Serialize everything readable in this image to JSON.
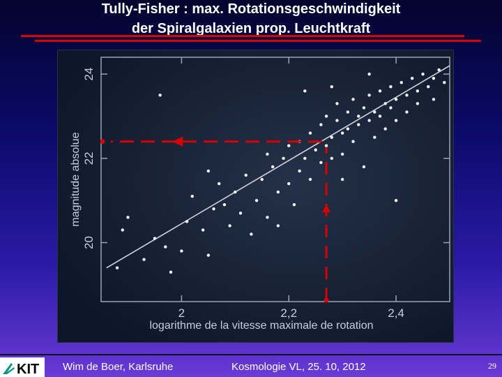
{
  "slide": {
    "title_line1": "Tully-Fisher : max. Rotationsgeschwindigkeit",
    "title_line2": "der Spiralgalaxien prop. Leuchtkraft",
    "footer_author": "Wim de Boer, Karlsruhe",
    "footer_course": "Kosmologie VL, 25. 10, 2012",
    "page_number": "29",
    "logo_text": "KIT",
    "accent_color": "#d60000"
  },
  "chart_data": {
    "type": "scatter",
    "title": "",
    "xlabel": "logarithme de la vitesse maximale de rotation",
    "ylabel": "magnitude absolue",
    "xlim": [
      1.85,
      2.5
    ],
    "ylim": [
      18.6,
      24.4
    ],
    "xticks": [
      "2",
      "2,2",
      "2,4"
    ],
    "yticks": [
      "20",
      "22",
      "24"
    ],
    "xtick_values": [
      2.0,
      2.2,
      2.4
    ],
    "ytick_values": [
      20,
      22,
      24
    ],
    "grid": false,
    "fit_line": {
      "x": [
        1.86,
        2.5
      ],
      "y": [
        19.4,
        24.2
      ]
    },
    "annotation": {
      "x": 2.27,
      "y": 22.4,
      "description": "red dashed arrows from x = 2.27 up to the fit line and left to y = 22.4"
    },
    "points": [
      {
        "x": 1.88,
        "y": 19.4
      },
      {
        "x": 1.89,
        "y": 20.3
      },
      {
        "x": 1.9,
        "y": 20.6
      },
      {
        "x": 1.93,
        "y": 19.6
      },
      {
        "x": 1.95,
        "y": 20.1
      },
      {
        "x": 1.97,
        "y": 19.9
      },
      {
        "x": 1.98,
        "y": 19.3
      },
      {
        "x": 2.0,
        "y": 19.8
      },
      {
        "x": 2.01,
        "y": 20.5
      },
      {
        "x": 2.02,
        "y": 21.1
      },
      {
        "x": 2.04,
        "y": 20.3
      },
      {
        "x": 2.05,
        "y": 19.7
      },
      {
        "x": 2.06,
        "y": 20.8
      },
      {
        "x": 2.07,
        "y": 21.4
      },
      {
        "x": 2.08,
        "y": 20.9
      },
      {
        "x": 2.09,
        "y": 20.4
      },
      {
        "x": 2.1,
        "y": 21.2
      },
      {
        "x": 2.11,
        "y": 20.7
      },
      {
        "x": 2.12,
        "y": 21.6
      },
      {
        "x": 2.13,
        "y": 20.2
      },
      {
        "x": 2.14,
        "y": 21.0
      },
      {
        "x": 2.15,
        "y": 21.5
      },
      {
        "x": 2.16,
        "y": 20.6
      },
      {
        "x": 2.16,
        "y": 22.1
      },
      {
        "x": 2.17,
        "y": 21.8
      },
      {
        "x": 2.18,
        "y": 21.2
      },
      {
        "x": 2.19,
        "y": 22.0
      },
      {
        "x": 2.2,
        "y": 21.4
      },
      {
        "x": 2.2,
        "y": 22.3
      },
      {
        "x": 2.21,
        "y": 20.9
      },
      {
        "x": 2.22,
        "y": 21.7
      },
      {
        "x": 2.22,
        "y": 22.4
      },
      {
        "x": 2.23,
        "y": 22.0
      },
      {
        "x": 2.24,
        "y": 21.5
      },
      {
        "x": 2.24,
        "y": 22.6
      },
      {
        "x": 2.25,
        "y": 22.2
      },
      {
        "x": 2.26,
        "y": 21.9
      },
      {
        "x": 2.26,
        "y": 22.8
      },
      {
        "x": 2.27,
        "y": 22.3
      },
      {
        "x": 2.27,
        "y": 23.0
      },
      {
        "x": 2.28,
        "y": 22.5
      },
      {
        "x": 2.28,
        "y": 22.0
      },
      {
        "x": 2.29,
        "y": 22.9
      },
      {
        "x": 2.29,
        "y": 23.3
      },
      {
        "x": 2.3,
        "y": 22.6
      },
      {
        "x": 2.3,
        "y": 22.1
      },
      {
        "x": 2.31,
        "y": 23.1
      },
      {
        "x": 2.31,
        "y": 22.7
      },
      {
        "x": 2.32,
        "y": 23.4
      },
      {
        "x": 2.32,
        "y": 22.4
      },
      {
        "x": 2.33,
        "y": 23.0
      },
      {
        "x": 2.33,
        "y": 22.8
      },
      {
        "x": 2.34,
        "y": 23.2
      },
      {
        "x": 2.34,
        "y": 21.8
      },
      {
        "x": 2.35,
        "y": 23.5
      },
      {
        "x": 2.35,
        "y": 22.9
      },
      {
        "x": 2.36,
        "y": 23.1
      },
      {
        "x": 2.36,
        "y": 22.5
      },
      {
        "x": 2.37,
        "y": 23.6
      },
      {
        "x": 2.37,
        "y": 23.0
      },
      {
        "x": 2.38,
        "y": 23.3
      },
      {
        "x": 2.38,
        "y": 22.7
      },
      {
        "x": 2.39,
        "y": 23.7
      },
      {
        "x": 2.39,
        "y": 23.2
      },
      {
        "x": 2.4,
        "y": 23.4
      },
      {
        "x": 2.4,
        "y": 22.9
      },
      {
        "x": 2.41,
        "y": 23.8
      },
      {
        "x": 2.42,
        "y": 23.5
      },
      {
        "x": 2.42,
        "y": 23.1
      },
      {
        "x": 2.43,
        "y": 23.9
      },
      {
        "x": 2.44,
        "y": 23.6
      },
      {
        "x": 2.44,
        "y": 23.3
      },
      {
        "x": 2.45,
        "y": 24.0
      },
      {
        "x": 2.46,
        "y": 23.7
      },
      {
        "x": 2.47,
        "y": 23.4
      },
      {
        "x": 2.47,
        "y": 23.9
      },
      {
        "x": 2.48,
        "y": 24.1
      },
      {
        "x": 2.49,
        "y": 23.8
      },
      {
        "x": 2.23,
        "y": 23.6
      },
      {
        "x": 2.28,
        "y": 23.7
      },
      {
        "x": 2.35,
        "y": 24.0
      },
      {
        "x": 2.4,
        "y": 21.0
      },
      {
        "x": 1.96,
        "y": 23.5
      },
      {
        "x": 2.05,
        "y": 21.7
      },
      {
        "x": 2.18,
        "y": 20.4
      },
      {
        "x": 2.3,
        "y": 21.5
      }
    ]
  }
}
